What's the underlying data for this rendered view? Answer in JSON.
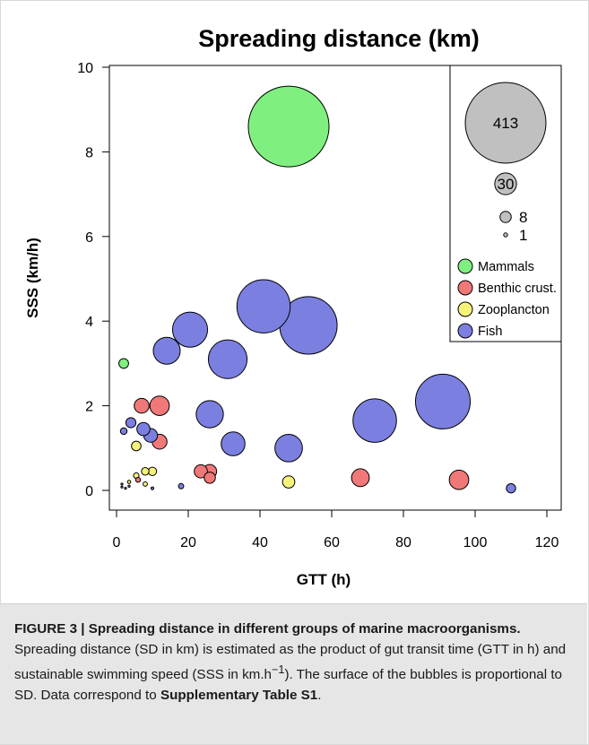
{
  "chart_data": {
    "type": "scatter",
    "title": "Spreading distance (km)",
    "xlabel": "GTT (h)",
    "ylabel": "SSS (km/h)",
    "xlim": [
      0,
      120
    ],
    "ylim": [
      0,
      10
    ],
    "x_ticks": [
      "0",
      "20",
      "40",
      "60",
      "80",
      "100",
      "120"
    ],
    "y_ticks": [
      "0",
      "2",
      "4",
      "6",
      "8",
      "10"
    ],
    "bubble_size": "area proportional to spreading distance (km)",
    "legend_position": "top-right",
    "size_legend": [
      {
        "value": 413,
        "label": "413"
      },
      {
        "value": 30,
        "label": "30"
      },
      {
        "value": 8,
        "label": "8"
      },
      {
        "value": 1,
        "label": "1"
      }
    ],
    "series": [
      {
        "name": "Mammals",
        "color": "#7ff07f",
        "points": [
          {
            "x": 48,
            "y": 8.6,
            "sd": 413
          },
          {
            "x": 2,
            "y": 3.0,
            "sd": 6
          }
        ]
      },
      {
        "name": "Benthic crust.",
        "color": "#f07878",
        "points": [
          {
            "x": 7,
            "y": 2.0,
            "sd": 14
          },
          {
            "x": 12,
            "y": 2.0,
            "sd": 24
          },
          {
            "x": 12,
            "y": 1.15,
            "sd": 14
          },
          {
            "x": 23.5,
            "y": 0.45,
            "sd": 11
          },
          {
            "x": 26,
            "y": 0.45,
            "sd": 12
          },
          {
            "x": 26,
            "y": 0.3,
            "sd": 8
          },
          {
            "x": 68,
            "y": 0.3,
            "sd": 20
          },
          {
            "x": 95.5,
            "y": 0.25,
            "sd": 24
          },
          {
            "x": 6,
            "y": 0.25,
            "sd": 1.5
          }
        ]
      },
      {
        "name": "Zooplancton",
        "color": "#f5f27a",
        "points": [
          {
            "x": 48,
            "y": 0.2,
            "sd": 9.6
          },
          {
            "x": 5.5,
            "y": 1.05,
            "sd": 5.8
          },
          {
            "x": 8,
            "y": 0.45,
            "sd": 3.6
          },
          {
            "x": 10,
            "y": 0.45,
            "sd": 4.5
          },
          {
            "x": 5.5,
            "y": 0.35,
            "sd": 1.9
          },
          {
            "x": 8,
            "y": 0.15,
            "sd": 1.2
          },
          {
            "x": 3.5,
            "y": 0.2,
            "sd": 0.7
          }
        ]
      },
      {
        "name": "Fish",
        "color": "#7b7fe0",
        "points": [
          {
            "x": 41,
            "y": 4.35,
            "sd": 180
          },
          {
            "x": 53.5,
            "y": 3.9,
            "sd": 210
          },
          {
            "x": 91,
            "y": 2.1,
            "sd": 190
          },
          {
            "x": 72,
            "y": 1.65,
            "sd": 120
          },
          {
            "x": 31,
            "y": 3.1,
            "sd": 95
          },
          {
            "x": 20.5,
            "y": 3.8,
            "sd": 78
          },
          {
            "x": 14,
            "y": 3.3,
            "sd": 46
          },
          {
            "x": 26,
            "y": 1.8,
            "sd": 47
          },
          {
            "x": 48,
            "y": 1.0,
            "sd": 48
          },
          {
            "x": 32.5,
            "y": 1.1,
            "sd": 36
          },
          {
            "x": 9.5,
            "y": 1.3,
            "sd": 12
          },
          {
            "x": 7.5,
            "y": 1.45,
            "sd": 11
          },
          {
            "x": 4,
            "y": 1.6,
            "sd": 6.4
          },
          {
            "x": 2,
            "y": 1.4,
            "sd": 2.8
          },
          {
            "x": 18,
            "y": 0.1,
            "sd": 1.8
          },
          {
            "x": 110,
            "y": 0.05,
            "sd": 5.5
          },
          {
            "x": 10,
            "y": 0.05,
            "sd": 0.5
          },
          {
            "x": 1.5,
            "y": 0.08,
            "sd": 0.12
          },
          {
            "x": 1.5,
            "y": 0.15,
            "sd": 0.2
          },
          {
            "x": 2.5,
            "y": 0.05,
            "sd": 0.12
          },
          {
            "x": 3.5,
            "y": 0.1,
            "sd": 0.3
          }
        ]
      }
    ]
  },
  "caption": {
    "lead": "FIGURE 3 | Spreading distance in different groups of marine macroorganisms.",
    "body": " Spreading distance (SD in km) is estimated as the product of gut transit time (GTT in h) and sustainable swimming speed (SSS in km.h",
    "sup": "−1",
    "body2": "). The surface of the bubbles is proportional to SD. Data correspond to ",
    "ref": "Supplementary Table S1",
    "end": "."
  }
}
